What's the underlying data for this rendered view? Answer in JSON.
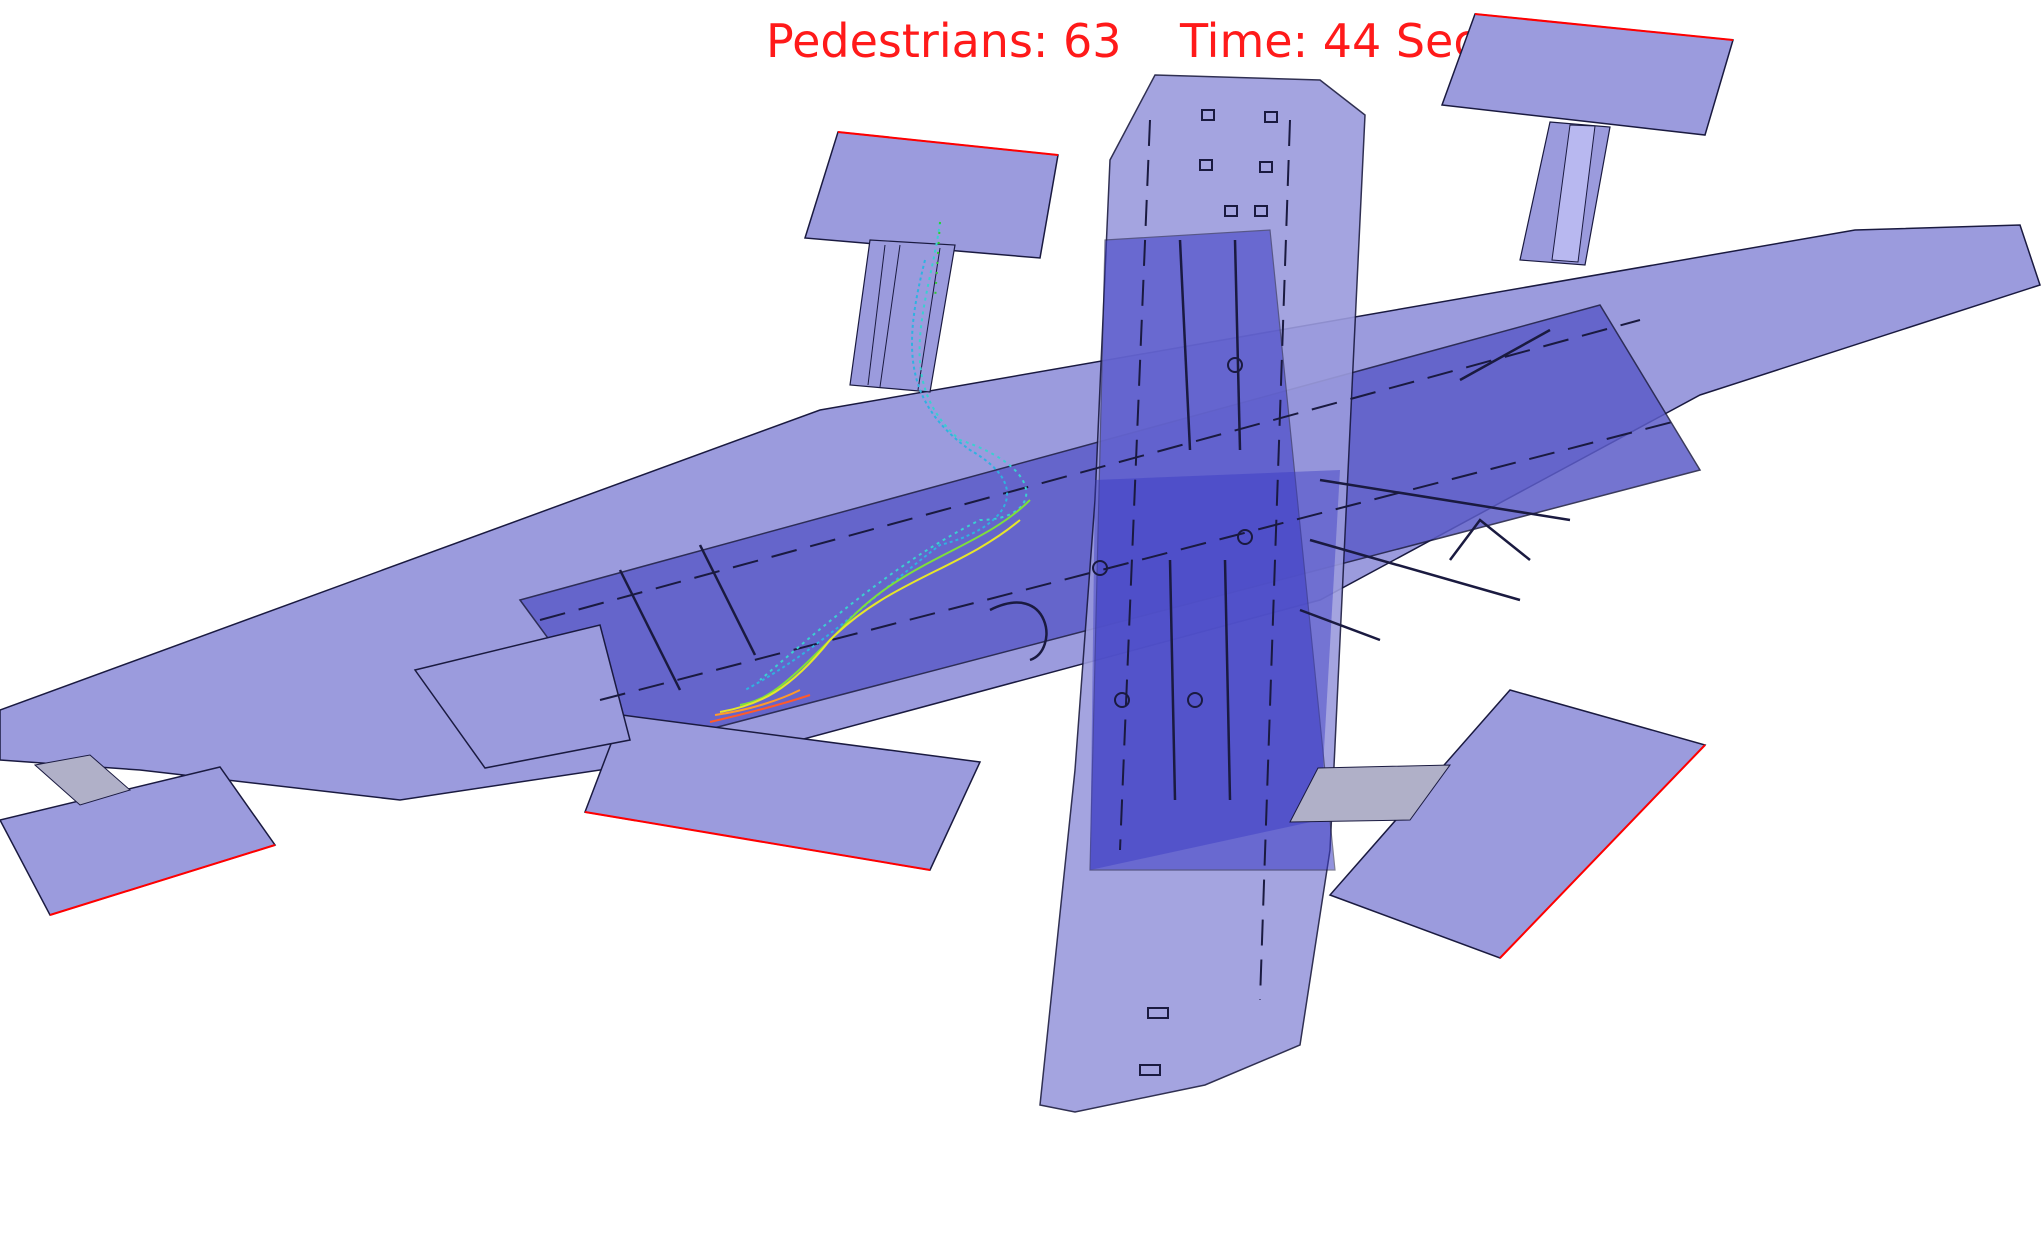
{
  "hud": {
    "pedestrians_label": "Pedestrians: 63",
    "time_label": "Time: 44 Sec"
  },
  "colors": {
    "floor_light": "#9b9bdd",
    "floor_dark": "#3a3ac4",
    "floor_mid": "#5c5cc8",
    "outline": "#1a1a40",
    "exit_edge": "#ff0000",
    "text": "#ff1a1a"
  },
  "pedestrian_trail_colors": [
    "#2ecc2e",
    "#3ad0d0",
    "#2fb2e0",
    "#7ee03a",
    "#e6e62a",
    "#ff9a2a",
    "#ff5a2a"
  ]
}
